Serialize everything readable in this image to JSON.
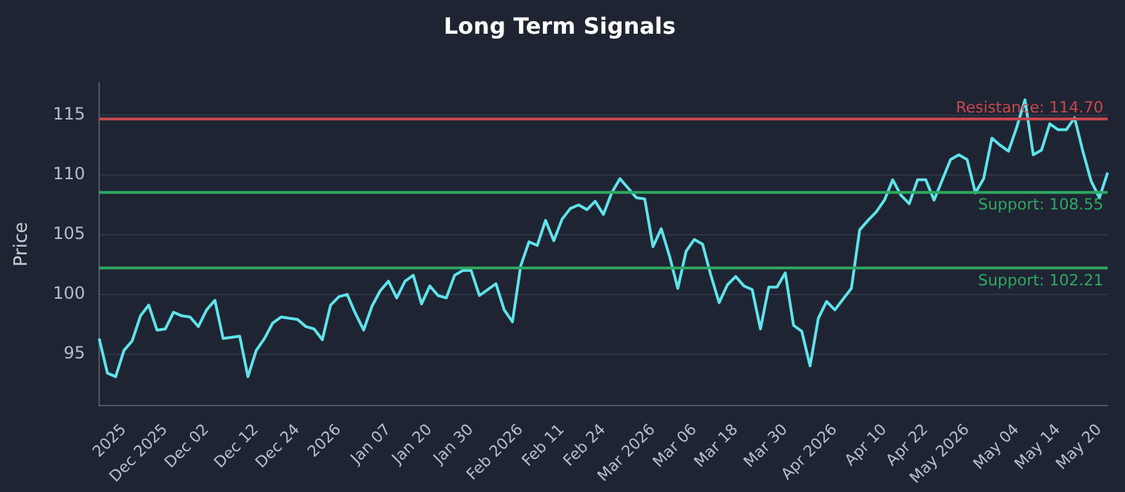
{
  "chart_data": {
    "type": "line",
    "title": "Long Term Signals",
    "ylabel": "Price",
    "categories": [
      null,
      null,
      null,
      "2025",
      null,
      null,
      null,
      null,
      "Dec 2025",
      null,
      null,
      null,
      null,
      "Dec 02",
      null,
      null,
      null,
      null,
      null,
      "Dec 12",
      null,
      null,
      null,
      null,
      "Dec 24",
      null,
      null,
      null,
      null,
      "2026",
      null,
      null,
      null,
      null,
      null,
      "Jan 07",
      null,
      null,
      null,
      null,
      "Jan 20",
      null,
      null,
      null,
      null,
      "Jan 30",
      null,
      null,
      null,
      null,
      null,
      "Feb 2026",
      null,
      null,
      null,
      null,
      "Feb 11",
      null,
      null,
      null,
      null,
      "Feb 24",
      null,
      null,
      null,
      null,
      null,
      "Mar 2026",
      null,
      null,
      null,
      null,
      "Mar 06",
      null,
      null,
      null,
      null,
      "Mar 18",
      null,
      null,
      null,
      null,
      null,
      "Mar 30",
      null,
      null,
      null,
      null,
      null,
      "Apr 2026",
      null,
      null,
      null,
      null,
      null,
      "Apr 10",
      null,
      null,
      null,
      null,
      "Apr 22",
      null,
      null,
      null,
      null,
      "May 2026",
      null,
      null,
      null,
      null,
      null,
      "May 04",
      null,
      null,
      null,
      null,
      "May 14",
      null,
      null,
      null,
      null,
      "May 20",
      null
    ],
    "series": [
      {
        "color": "#5ee3ea",
        "values": [
          96.3,
          93.4,
          93.1,
          95.3,
          96.1,
          98.2,
          99.1,
          97.0,
          97.1,
          98.5,
          98.2,
          98.1,
          97.3,
          98.7,
          99.5,
          96.3,
          96.4,
          96.5,
          93.1,
          95.3,
          96.3,
          97.6,
          98.1,
          98.0,
          97.9,
          97.3,
          97.1,
          96.2,
          99.1,
          99.8,
          100.0,
          98.4,
          97.0,
          99.0,
          100.3,
          101.1,
          99.7,
          101.1,
          101.6,
          99.2,
          100.7,
          99.9,
          99.7,
          101.6,
          102.0,
          102.0,
          99.9,
          100.4,
          100.9,
          98.7,
          97.7,
          102.4,
          104.4,
          104.1,
          106.2,
          104.5,
          106.3,
          107.2,
          107.5,
          107.1,
          107.8,
          106.7,
          108.5,
          109.7,
          108.9,
          108.1,
          108.0,
          104.0,
          105.5,
          103.2,
          100.5,
          103.6,
          104.6,
          104.2,
          101.6,
          99.3,
          100.8,
          101.5,
          100.7,
          100.4,
          97.1,
          100.6,
          100.6,
          101.8,
          97.4,
          96.9,
          94.0,
          98.0,
          99.4,
          98.7,
          99.6,
          100.5,
          105.4,
          106.2,
          106.9,
          107.9,
          109.6,
          108.3,
          107.6,
          109.6,
          109.6,
          107.9,
          109.6,
          111.3,
          111.7,
          111.3,
          108.5,
          109.7,
          113.1,
          112.5,
          112.0,
          114.0,
          116.3,
          111.7,
          112.1,
          114.3,
          113.8,
          113.8,
          114.8,
          112.0,
          109.5,
          108.1,
          110.2
        ]
      }
    ],
    "ylim": [
      90.7,
      117.7
    ],
    "yticks": [
      95,
      100,
      105,
      110,
      115
    ],
    "grid": "y",
    "legend": false,
    "marker": "none",
    "line_style": "solid",
    "ref_lines": [
      {
        "axis": "y",
        "value": 114.7,
        "label": "Resistance: 114.70",
        "color": "#c9474f"
      },
      {
        "axis": "y",
        "value": 108.55,
        "label": "Support: 108.55",
        "color": "#2fa862"
      },
      {
        "axis": "y",
        "value": 102.21,
        "label": "Support: 102.21",
        "color": "#2fa862"
      }
    ]
  }
}
